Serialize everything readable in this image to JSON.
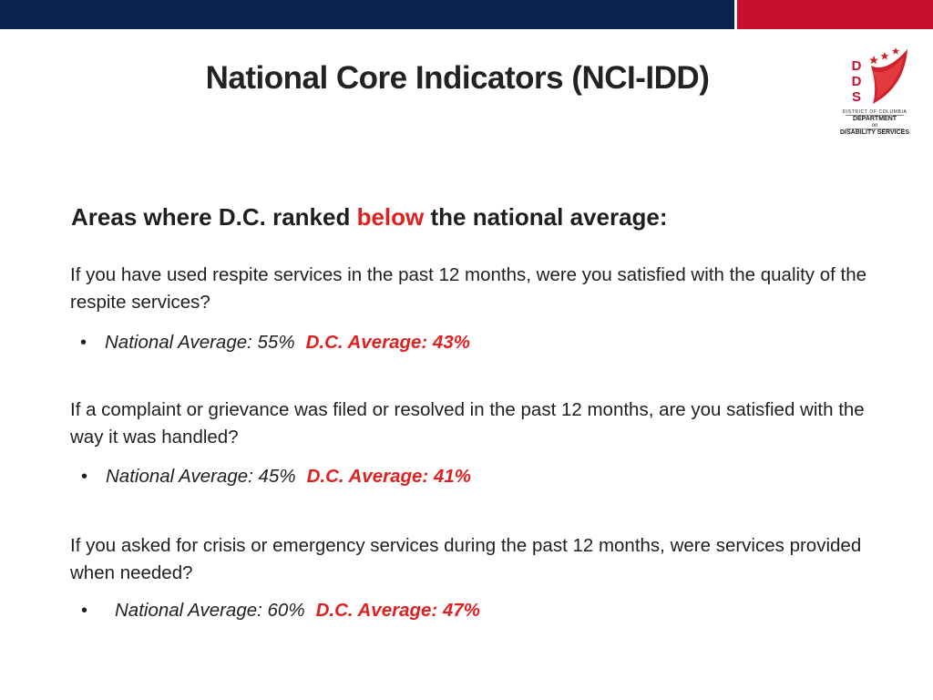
{
  "colors": {
    "navy": "#0c2350",
    "red": "#c8102e",
    "accent_red": "#e02020",
    "text": "#1f1f1f"
  },
  "slide": {
    "title": "National Core Indicators (NCI-IDD)"
  },
  "logo": {
    "letters": [
      "D",
      "D",
      "S"
    ],
    "line1": "DISTRICT OF COLUMBIA",
    "line2": "DEPARTMENT",
    "line3": "on",
    "line4": "DISABILITY SERVICES",
    "icon": "flag-stars-icon"
  },
  "heading": {
    "prefix": "Areas where D.C. ranked ",
    "emphasis": "below",
    "suffix": " the national average:"
  },
  "items": [
    {
      "question": "If you have used respite services in the past 12 months, were you satisfied with the quality of the respite services?",
      "national": "National Average: 55%",
      "dc": "D.C. Average: 43%",
      "national_value": 55,
      "dc_value": 43
    },
    {
      "question": "If a complaint or grievance was filed or resolved in the past 12 months, are you satisfied with the way it was handled?",
      "national": "National Average: 45%",
      "dc": "D.C. Average: 41%",
      "national_value": 45,
      "dc_value": 41
    },
    {
      "question": "If you asked for crisis or emergency services during the past 12 months, were services provided when needed?",
      "national": "National Average: 60%",
      "dc": "D.C. Average: 47%",
      "national_value": 60,
      "dc_value": 47
    }
  ],
  "bullet": "•"
}
